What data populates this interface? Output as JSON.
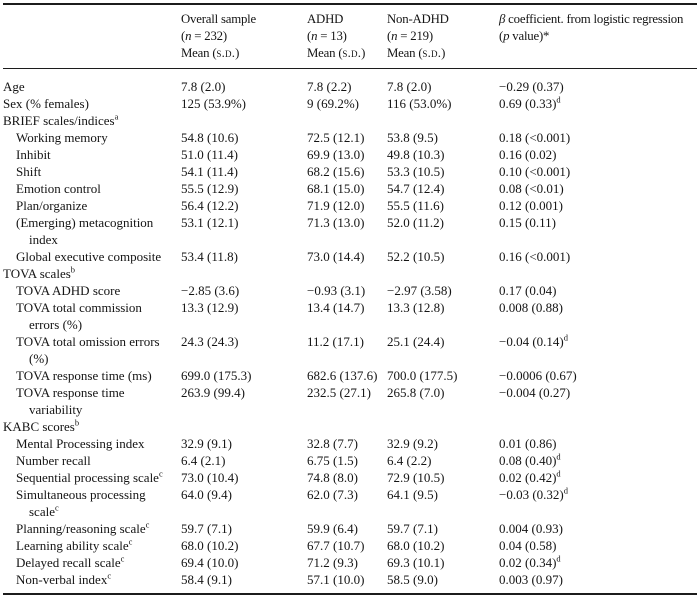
{
  "table": {
    "header": {
      "cells": [
        {
          "name": "col-row-labels",
          "lines": []
        },
        {
          "name": "col-overall",
          "lines": [
            [
              {
                "t": "Overall sample"
              }
            ],
            [
              {
                "t": "("
              },
              {
                "t": "n",
                "s": "i"
              },
              {
                "t": " = 232)"
              }
            ],
            [
              {
                "t": "Mean ("
              },
              {
                "t": "s.d.",
                "s": "sc"
              },
              {
                "t": ")"
              }
            ]
          ]
        },
        {
          "name": "col-adhd",
          "lines": [
            [
              {
                "t": "ADHD"
              }
            ],
            [
              {
                "t": "("
              },
              {
                "t": "n",
                "s": "i"
              },
              {
                "t": " = 13)"
              }
            ],
            [
              {
                "t": "Mean ("
              },
              {
                "t": "s.d.",
                "s": "sc"
              },
              {
                "t": ")"
              }
            ]
          ]
        },
        {
          "name": "col-non-adhd",
          "lines": [
            [
              {
                "t": "Non-ADHD"
              }
            ],
            [
              {
                "t": "("
              },
              {
                "t": "n",
                "s": "i"
              },
              {
                "t": " = 219)"
              }
            ],
            [
              {
                "t": "Mean ("
              },
              {
                "t": "s.d.",
                "s": "sc"
              },
              {
                "t": ")"
              }
            ]
          ]
        },
        {
          "name": "col-beta",
          "lines": [
            [
              {
                "t": "β",
                "s": "i"
              },
              {
                "t": " coefficient. from logistic regression"
              }
            ],
            [
              {
                "t": "("
              },
              {
                "t": "p",
                "s": "i"
              },
              {
                "t": " value)*"
              }
            ]
          ]
        }
      ]
    },
    "rows": [
      {
        "name": "age",
        "indent": 0,
        "label": [
          [
            {
              "t": "Age"
            }
          ]
        ],
        "cells": [
          [
            {
              "t": "7.8 (2.0)"
            }
          ],
          [
            {
              "t": "7.8 (2.2)"
            }
          ],
          [
            {
              "t": "7.8 (2.0)"
            }
          ],
          [
            {
              "t": "−0.29 (0.37)"
            }
          ]
        ]
      },
      {
        "name": "sex-pct-females",
        "indent": 0,
        "label": [
          [
            {
              "t": "Sex (% females)"
            }
          ]
        ],
        "cells": [
          [
            {
              "t": "125 (53.9%)"
            }
          ],
          [
            {
              "t": "9 (69.2%)"
            }
          ],
          [
            {
              "t": "116 (53.0%)"
            }
          ],
          [
            {
              "t": "0.69 (0.33)"
            },
            {
              "t": "d",
              "s": "sup"
            }
          ]
        ]
      },
      {
        "name": "brief-scales-section",
        "indent": 0,
        "label": [
          [
            {
              "t": "BRIEF scales/indices"
            },
            {
              "t": "a",
              "s": "sup"
            }
          ]
        ],
        "cells": [
          [],
          [],
          [],
          []
        ]
      },
      {
        "name": "working-memory",
        "indent": 1,
        "label": [
          [
            {
              "t": "Working memory"
            }
          ]
        ],
        "cells": [
          [
            {
              "t": "54.8 (10.6)"
            }
          ],
          [
            {
              "t": "72.5 (12.1)"
            }
          ],
          [
            {
              "t": "53.8 (9.5)"
            }
          ],
          [
            {
              "t": "0.18 (<0.001)"
            }
          ]
        ]
      },
      {
        "name": "inhibit",
        "indent": 1,
        "label": [
          [
            {
              "t": "Inhibit"
            }
          ]
        ],
        "cells": [
          [
            {
              "t": "51.0 (11.4)"
            }
          ],
          [
            {
              "t": "69.9 (13.0)"
            }
          ],
          [
            {
              "t": "49.8 (10.3)"
            }
          ],
          [
            {
              "t": "0.16 (0.02)"
            }
          ]
        ]
      },
      {
        "name": "shift",
        "indent": 1,
        "label": [
          [
            {
              "t": "Shift"
            }
          ]
        ],
        "cells": [
          [
            {
              "t": "54.1 (11.4)"
            }
          ],
          [
            {
              "t": "68.2 (15.6)"
            }
          ],
          [
            {
              "t": "53.3 (10.5)"
            }
          ],
          [
            {
              "t": "0.10 (<0.001)"
            }
          ]
        ]
      },
      {
        "name": "emotion-control",
        "indent": 1,
        "label": [
          [
            {
              "t": "Emotion control"
            }
          ]
        ],
        "cells": [
          [
            {
              "t": "55.5 (12.9)"
            }
          ],
          [
            {
              "t": "68.1 (15.0)"
            }
          ],
          [
            {
              "t": "54.7 (12.4)"
            }
          ],
          [
            {
              "t": "0.08 (<0.01)"
            }
          ]
        ]
      },
      {
        "name": "plan-organize",
        "indent": 1,
        "label": [
          [
            {
              "t": "Plan/organize"
            }
          ]
        ],
        "cells": [
          [
            {
              "t": "56.4 (12.2)"
            }
          ],
          [
            {
              "t": "71.9 (12.0)"
            }
          ],
          [
            {
              "t": "55.5 (11.6)"
            }
          ],
          [
            {
              "t": "0.12 (0.001)"
            }
          ]
        ]
      },
      {
        "name": "emerging-metacognition-index",
        "indent": 1,
        "label": [
          [
            {
              "t": "(Emerging) metacognition"
            }
          ],
          [
            {
              "t": "index"
            }
          ]
        ],
        "cells": [
          [
            {
              "t": "53.1 (12.1)"
            }
          ],
          [
            {
              "t": "71.3 (13.0)"
            }
          ],
          [
            {
              "t": "52.0 (11.2)"
            }
          ],
          [
            {
              "t": "0.15 (0.11)"
            }
          ]
        ]
      },
      {
        "name": "global-executive-composite",
        "indent": 1,
        "label": [
          [
            {
              "t": "Global executive composite"
            }
          ]
        ],
        "cells": [
          [
            {
              "t": "53.4 (11.8)"
            }
          ],
          [
            {
              "t": "73.0 (14.4)"
            }
          ],
          [
            {
              "t": "52.2 (10.5)"
            }
          ],
          [
            {
              "t": "0.16 (<0.001)"
            }
          ]
        ]
      },
      {
        "name": "tova-scales-section",
        "indent": 0,
        "label": [
          [
            {
              "t": "TOVA scales"
            },
            {
              "t": "b",
              "s": "sup"
            }
          ]
        ],
        "cells": [
          [],
          [],
          [],
          []
        ]
      },
      {
        "name": "tova-adhd-score",
        "indent": 1,
        "label": [
          [
            {
              "t": "TOVA ADHD score"
            }
          ]
        ],
        "cells": [
          [
            {
              "t": "−2.85 (3.6)"
            }
          ],
          [
            {
              "t": "−0.93 (3.1)"
            }
          ],
          [
            {
              "t": "−2.97 (3.58)"
            }
          ],
          [
            {
              "t": "0.17 (0.04)"
            }
          ]
        ]
      },
      {
        "name": "tova-total-commission-errors",
        "indent": 1,
        "label": [
          [
            {
              "t": "TOVA total commission"
            }
          ],
          [
            {
              "t": "errors (%)"
            }
          ]
        ],
        "cells": [
          [
            {
              "t": "13.3 (12.9)"
            }
          ],
          [
            {
              "t": "13.4 (14.7)"
            }
          ],
          [
            {
              "t": "13.3 (12.8)"
            }
          ],
          [
            {
              "t": "0.008 (0.88)"
            }
          ]
        ]
      },
      {
        "name": "tova-total-omission-errors",
        "indent": 1,
        "label": [
          [
            {
              "t": "TOVA total omission errors"
            }
          ],
          [
            {
              "t": "(%)"
            }
          ]
        ],
        "cells": [
          [
            {
              "t": "24.3 (24.3)"
            }
          ],
          [
            {
              "t": "11.2 (17.1)"
            }
          ],
          [
            {
              "t": "25.1 (24.4)"
            }
          ],
          [
            {
              "t": "−0.04 (0.14)"
            },
            {
              "t": "d",
              "s": "sup"
            }
          ]
        ]
      },
      {
        "name": "tova-response-time",
        "indent": 1,
        "label": [
          [
            {
              "t": "TOVA response time (ms)"
            }
          ]
        ],
        "cells": [
          [
            {
              "t": "699.0 (175.3)"
            }
          ],
          [
            {
              "t": "682.6 (137.6)"
            }
          ],
          [
            {
              "t": "700.0 (177.5)"
            }
          ],
          [
            {
              "t": "−0.0006 (0.67)"
            }
          ]
        ]
      },
      {
        "name": "tova-response-time-variability",
        "indent": 1,
        "label": [
          [
            {
              "t": "TOVA response time"
            }
          ],
          [
            {
              "t": "variability"
            }
          ]
        ],
        "cells": [
          [
            {
              "t": "263.9 (99.4)"
            }
          ],
          [
            {
              "t": "232.5 (27.1)"
            }
          ],
          [
            {
              "t": "265.8 (7.0)"
            }
          ],
          [
            {
              "t": "−0.004 (0.27)"
            }
          ]
        ]
      },
      {
        "name": "kabc-scores-section",
        "indent": 0,
        "label": [
          [
            {
              "t": "KABC scores"
            },
            {
              "t": "b",
              "s": "sup"
            }
          ]
        ],
        "cells": [
          [],
          [],
          [],
          []
        ]
      },
      {
        "name": "mental-processing-index",
        "indent": 1,
        "label": [
          [
            {
              "t": "Mental Processing index"
            }
          ]
        ],
        "cells": [
          [
            {
              "t": "32.9 (9.1)"
            }
          ],
          [
            {
              "t": "32.8 (7.7)"
            }
          ],
          [
            {
              "t": "32.9 (9.2)"
            }
          ],
          [
            {
              "t": "0.01 (0.86)"
            }
          ]
        ]
      },
      {
        "name": "number-recall",
        "indent": 1,
        "label": [
          [
            {
              "t": "Number recall"
            }
          ]
        ],
        "cells": [
          [
            {
              "t": "6.4 (2.1)"
            }
          ],
          [
            {
              "t": "6.75 (1.5)"
            }
          ],
          [
            {
              "t": "6.4 (2.2)"
            }
          ],
          [
            {
              "t": "0.08 (0.40)"
            },
            {
              "t": "d",
              "s": "sup"
            }
          ]
        ]
      },
      {
        "name": "sequential-processing-scale",
        "indent": 1,
        "label": [
          [
            {
              "t": "Sequential processing scale"
            },
            {
              "t": "c",
              "s": "sup"
            }
          ]
        ],
        "cells": [
          [
            {
              "t": "73.0 (10.4)"
            }
          ],
          [
            {
              "t": "74.8 (8.0)"
            }
          ],
          [
            {
              "t": "72.9 (10.5)"
            }
          ],
          [
            {
              "t": "0.02 (0.42)"
            },
            {
              "t": "d",
              "s": "sup"
            }
          ]
        ]
      },
      {
        "name": "simultaneous-processing-scale",
        "indent": 1,
        "label": [
          [
            {
              "t": "Simultaneous processing"
            }
          ],
          [
            {
              "t": "scale"
            },
            {
              "t": "c",
              "s": "sup"
            }
          ]
        ],
        "cells": [
          [
            {
              "t": "64.0 (9.4)"
            }
          ],
          [
            {
              "t": "62.0 (7.3)"
            }
          ],
          [
            {
              "t": "64.1 (9.5)"
            }
          ],
          [
            {
              "t": "−0.03 (0.32)"
            },
            {
              "t": "d",
              "s": "sup"
            }
          ]
        ]
      },
      {
        "name": "planning-reasoning-scale",
        "indent": 1,
        "label": [
          [
            {
              "t": "Planning/reasoning scale"
            },
            {
              "t": "c",
              "s": "sup"
            }
          ]
        ],
        "cells": [
          [
            {
              "t": "59.7 (7.1)"
            }
          ],
          [
            {
              "t": "59.9 (6.4)"
            }
          ],
          [
            {
              "t": "59.7 (7.1)"
            }
          ],
          [
            {
              "t": "0.004 (0.93)"
            }
          ]
        ]
      },
      {
        "name": "learning-ability-scale",
        "indent": 1,
        "label": [
          [
            {
              "t": "Learning ability scale"
            },
            {
              "t": "c",
              "s": "sup"
            }
          ]
        ],
        "cells": [
          [
            {
              "t": "68.0 (10.2)"
            }
          ],
          [
            {
              "t": "67.7 (10.7)"
            }
          ],
          [
            {
              "t": "68.0 (10.2)"
            }
          ],
          [
            {
              "t": "0.04 (0.58)"
            }
          ]
        ]
      },
      {
        "name": "delayed-recall-scale",
        "indent": 1,
        "label": [
          [
            {
              "t": "Delayed recall scale"
            },
            {
              "t": "c",
              "s": "sup"
            }
          ]
        ],
        "cells": [
          [
            {
              "t": "69.4 (10.0)"
            }
          ],
          [
            {
              "t": "71.2 (9.3)"
            }
          ],
          [
            {
              "t": "69.3 (10.1)"
            }
          ],
          [
            {
              "t": "0.02 (0.34)"
            },
            {
              "t": "d",
              "s": "sup"
            }
          ]
        ]
      },
      {
        "name": "non-verbal-index",
        "indent": 1,
        "label": [
          [
            {
              "t": "Non-verbal index"
            },
            {
              "t": "c",
              "s": "sup"
            }
          ]
        ],
        "cells": [
          [
            {
              "t": "58.4 (9.1)"
            }
          ],
          [
            {
              "t": "57.1 (10.0)"
            }
          ],
          [
            {
              "t": "58.5 (9.0)"
            }
          ],
          [
            {
              "t": "0.003 (0.97)"
            }
          ]
        ]
      }
    ]
  }
}
